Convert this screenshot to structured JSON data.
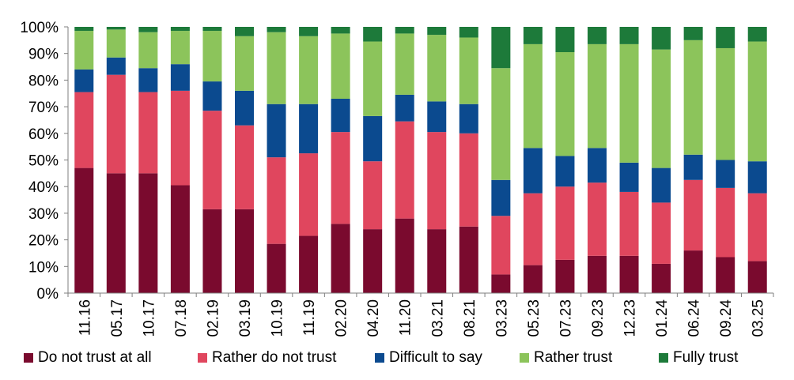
{
  "chart_data": {
    "type": "bar",
    "stacked": true,
    "categories": [
      "11.16",
      "05.17",
      "10.17",
      "07.18",
      "02.19",
      "03.19",
      "10.19",
      "11.19",
      "02.20",
      "04.20",
      "11.20",
      "03.21",
      "08.21",
      "03.23",
      "05.23",
      "07.23",
      "09.23",
      "12.23",
      "01.24",
      "06.24",
      "09.24",
      "03.25"
    ],
    "yticks": [
      "0%",
      "10%",
      "20%",
      "30%",
      "40%",
      "50%",
      "60%",
      "70%",
      "80%",
      "90%",
      "100%"
    ],
    "ylim": [
      0,
      100
    ],
    "grid": false,
    "legend_position": "bottom",
    "series": [
      {
        "name": "Do not trust at all",
        "color": "#7a0a2e",
        "values": [
          47,
          45,
          45,
          40.5,
          31.5,
          31.5,
          18.5,
          21.5,
          26,
          24,
          28,
          24,
          25,
          7,
          10.5,
          12.5,
          14,
          14,
          11,
          16,
          13.5,
          12
        ]
      },
      {
        "name": "Rather do not trust",
        "color": "#e0465e",
        "values": [
          28.5,
          37,
          30.5,
          35.5,
          37,
          31.5,
          32.5,
          31,
          34.5,
          25.5,
          36.5,
          36.5,
          35,
          22,
          27,
          27.5,
          27.5,
          24,
          23,
          26.5,
          26,
          25.5
        ]
      },
      {
        "name": "Difficult to say",
        "color": "#0b4a8f",
        "values": [
          8.5,
          6.5,
          9,
          10,
          11,
          13,
          20,
          18.5,
          12.5,
          17,
          10,
          11.5,
          11,
          13.5,
          17,
          11.5,
          13,
          11,
          13,
          9.5,
          10.5,
          12
        ]
      },
      {
        "name": "Rather trust",
        "color": "#8cc45b",
        "values": [
          14.5,
          10.5,
          13.5,
          12.5,
          19,
          20.5,
          27,
          25.5,
          24.5,
          28,
          23,
          25,
          25,
          42,
          39,
          39,
          39,
          44.5,
          44.5,
          43,
          42,
          45
        ]
      },
      {
        "name": "Fully trust",
        "color": "#1d7a3a",
        "values": [
          1.5,
          1,
          2,
          1.5,
          1.5,
          3.5,
          2,
          3.5,
          2.5,
          5.5,
          2.5,
          3,
          4,
          15.5,
          6.5,
          9.5,
          6.5,
          6.5,
          8.5,
          5,
          8,
          5.5
        ]
      }
    ]
  }
}
